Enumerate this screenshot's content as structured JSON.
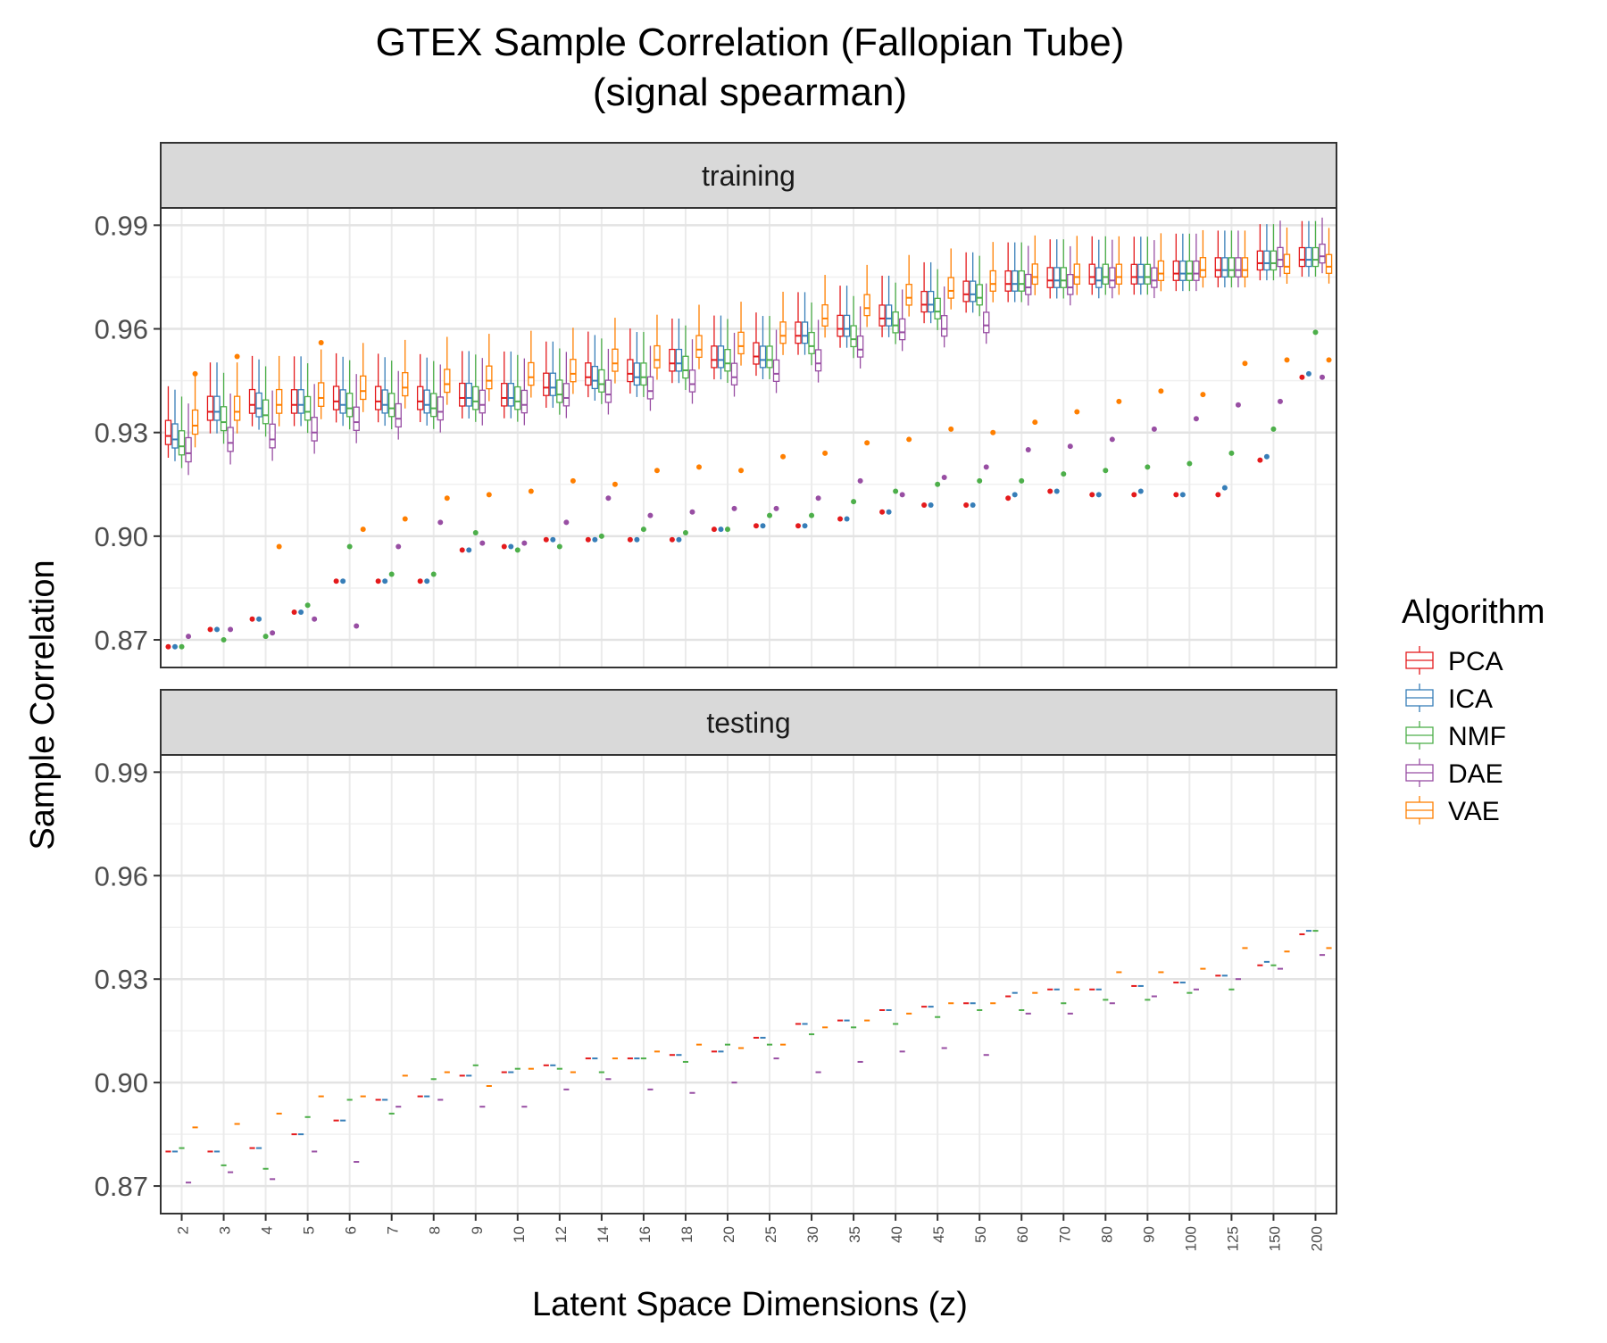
{
  "chart_data": {
    "type": "box",
    "title": "GTEX Sample Correlation (Fallopian Tube)",
    "subtitle": "(signal spearman)",
    "xlabel": "Latent Space Dimensions (z)",
    "ylabel": "Sample Correlation",
    "categories": [
      "2",
      "3",
      "4",
      "5",
      "6",
      "7",
      "8",
      "9",
      "10",
      "12",
      "14",
      "16",
      "18",
      "20",
      "25",
      "30",
      "35",
      "40",
      "45",
      "50",
      "60",
      "70",
      "80",
      "90",
      "100",
      "125",
      "150",
      "200"
    ],
    "yticks": [
      "0.87",
      "0.90",
      "0.93",
      "0.96",
      "0.99"
    ],
    "ylim": [
      0.862,
      0.995
    ],
    "grid": true,
    "legend": {
      "title": "Algorithm",
      "position": "right",
      "items": [
        {
          "name": "PCA",
          "color": "#e41a1c"
        },
        {
          "name": "ICA",
          "color": "#377eb8"
        },
        {
          "name": "NMF",
          "color": "#4daf4a"
        },
        {
          "name": "DAE",
          "color": "#984ea3"
        },
        {
          "name": "VAE",
          "color": "#ff7f00"
        }
      ]
    },
    "panels": [
      {
        "label": "training",
        "series": [
          {
            "name": "PCA",
            "median": [
              0.929,
              0.936,
              0.938,
              0.938,
              0.939,
              0.939,
              0.939,
              0.94,
              0.94,
              0.943,
              0.946,
              0.947,
              0.95,
              0.951,
              0.952,
              0.958,
              0.96,
              0.963,
              0.967,
              0.97,
              0.973,
              0.974,
              0.975,
              0.975,
              0.976,
              0.977,
              0.979,
              0.98
            ],
            "outlier": [
              0.868,
              0.873,
              0.876,
              0.878,
              0.887,
              0.887,
              0.887,
              0.896,
              0.897,
              0.899,
              0.899,
              0.899,
              0.899,
              0.902,
              0.903,
              0.903,
              0.905,
              0.907,
              0.909,
              0.909,
              0.911,
              0.913,
              0.912,
              0.912,
              0.912,
              0.912,
              0.922,
              0.946
            ]
          },
          {
            "name": "ICA",
            "median": [
              0.928,
              0.936,
              0.937,
              0.938,
              0.938,
              0.938,
              0.938,
              0.94,
              0.94,
              0.943,
              0.945,
              0.946,
              0.95,
              0.951,
              0.951,
              0.958,
              0.96,
              0.963,
              0.967,
              0.97,
              0.973,
              0.974,
              0.974,
              0.975,
              0.976,
              0.977,
              0.979,
              0.98
            ],
            "outlier": [
              0.868,
              0.873,
              0.876,
              0.878,
              0.887,
              0.887,
              0.887,
              0.896,
              0.897,
              0.899,
              0.899,
              0.899,
              0.899,
              0.902,
              0.903,
              0.903,
              0.905,
              0.907,
              0.909,
              0.909,
              0.912,
              0.913,
              0.912,
              0.913,
              0.912,
              0.914,
              0.923,
              0.947
            ]
          },
          {
            "name": "NMF",
            "median": [
              0.926,
              0.933,
              0.935,
              0.936,
              0.937,
              0.937,
              0.937,
              0.939,
              0.939,
              0.941,
              0.944,
              0.946,
              0.948,
              0.95,
              0.951,
              0.955,
              0.957,
              0.961,
              0.965,
              0.969,
              0.973,
              0.974,
              0.975,
              0.975,
              0.976,
              0.977,
              0.979,
              0.98
            ],
            "outlier": [
              0.868,
              0.87,
              0.871,
              0.88,
              0.897,
              0.889,
              0.889,
              0.901,
              0.896,
              0.897,
              0.9,
              0.902,
              0.901,
              0.902,
              0.906,
              0.906,
              0.91,
              0.913,
              0.915,
              0.916,
              0.916,
              0.918,
              0.919,
              0.92,
              0.921,
              0.924,
              0.931,
              0.959
            ]
          },
          {
            "name": "DAE",
            "median": [
              0.924,
              0.927,
              0.928,
              0.93,
              0.933,
              0.934,
              0.936,
              0.938,
              0.938,
              0.94,
              0.941,
              0.942,
              0.944,
              0.946,
              0.947,
              0.95,
              0.954,
              0.959,
              0.96,
              0.961,
              0.972,
              0.972,
              0.974,
              0.974,
              0.976,
              0.977,
              0.98,
              0.981
            ],
            "outlier": [
              0.871,
              0.873,
              0.872,
              0.876,
              0.874,
              0.897,
              0.904,
              0.898,
              0.898,
              0.904,
              0.911,
              0.906,
              0.907,
              0.908,
              0.908,
              0.911,
              0.916,
              0.912,
              0.917,
              0.92,
              0.925,
              0.926,
              0.928,
              0.931,
              0.934,
              0.938,
              0.939,
              0.946
            ]
          },
          {
            "name": "VAE",
            "median": [
              0.932,
              0.936,
              0.938,
              0.94,
              0.942,
              0.943,
              0.944,
              0.945,
              0.946,
              0.947,
              0.95,
              0.951,
              0.954,
              0.955,
              0.958,
              0.963,
              0.966,
              0.969,
              0.971,
              0.973,
              0.975,
              0.975,
              0.975,
              0.976,
              0.977,
              0.977,
              0.978,
              0.978
            ],
            "outlier": [
              0.947,
              0.952,
              0.897,
              0.956,
              0.902,
              0.905,
              0.911,
              0.912,
              0.913,
              0.916,
              0.915,
              0.919,
              0.92,
              0.919,
              0.923,
              0.924,
              0.927,
              0.928,
              0.931,
              0.93,
              0.933,
              0.936,
              0.939,
              0.942,
              0.941,
              0.95,
              0.951,
              0.951
            ]
          }
        ]
      },
      {
        "label": "testing",
        "series": [
          {
            "name": "PCA",
            "values": [
              0.88,
              0.88,
              0.881,
              0.885,
              0.889,
              0.895,
              0.896,
              0.902,
              0.903,
              0.905,
              0.907,
              0.907,
              0.908,
              0.909,
              0.913,
              0.917,
              0.918,
              0.921,
              0.922,
              0.923,
              0.925,
              0.927,
              0.927,
              0.928,
              0.929,
              0.931,
              0.934,
              0.943
            ]
          },
          {
            "name": "ICA",
            "values": [
              0.88,
              0.88,
              0.881,
              0.885,
              0.889,
              0.895,
              0.896,
              0.902,
              0.903,
              0.905,
              0.907,
              0.907,
              0.908,
              0.909,
              0.913,
              0.917,
              0.918,
              0.921,
              0.922,
              0.923,
              0.926,
              0.927,
              0.927,
              0.928,
              0.929,
              0.931,
              0.935,
              0.944
            ]
          },
          {
            "name": "NMF",
            "values": [
              0.881,
              0.876,
              0.875,
              0.89,
              0.895,
              0.891,
              0.901,
              0.905,
              0.904,
              0.904,
              0.903,
              0.907,
              0.906,
              0.911,
              0.911,
              0.914,
              0.916,
              0.917,
              0.919,
              0.921,
              0.921,
              0.923,
              0.924,
              0.924,
              0.926,
              0.927,
              0.934,
              0.944
            ]
          },
          {
            "name": "DAE",
            "values": [
              0.871,
              0.874,
              0.872,
              0.88,
              0.877,
              0.893,
              0.895,
              0.893,
              0.893,
              0.898,
              0.901,
              0.898,
              0.897,
              0.9,
              0.907,
              0.903,
              0.906,
              0.909,
              0.91,
              0.908,
              0.92,
              0.92,
              0.923,
              0.925,
              0.927,
              0.93,
              0.933,
              0.937
            ]
          },
          {
            "name": "VAE",
            "values": [
              0.887,
              0.888,
              0.891,
              0.896,
              0.896,
              0.902,
              0.903,
              0.899,
              0.904,
              0.903,
              0.907,
              0.909,
              0.911,
              0.91,
              0.911,
              0.916,
              0.918,
              0.92,
              0.923,
              0.923,
              0.926,
              0.927,
              0.932,
              0.932,
              0.933,
              0.939,
              0.938,
              0.939
            ]
          }
        ]
      }
    ]
  }
}
